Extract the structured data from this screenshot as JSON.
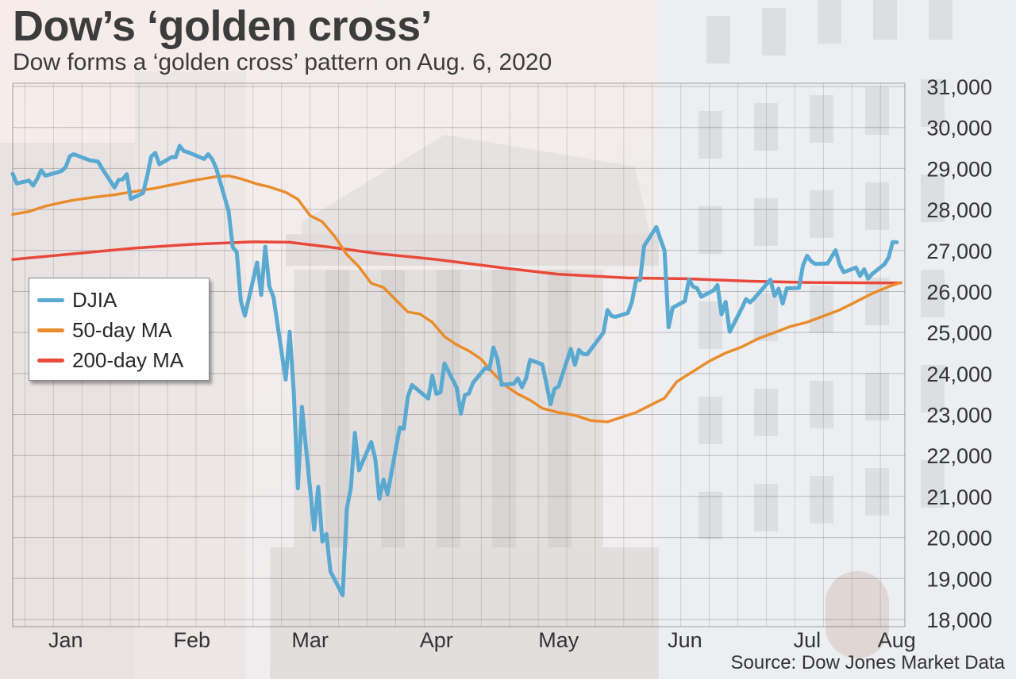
{
  "title": "Dow’s ‘golden cross’",
  "subtitle": "Dow forms a ‘golden cross’ pattern on Aug. 6, 2020",
  "source": "Source: Dow Jones Market Data",
  "colors": {
    "djia": "#5aa9d0",
    "ma50": "#e98d2c",
    "ma200": "#e8493a"
  },
  "chart_data": {
    "type": "line",
    "title": "Dow’s ‘golden cross’",
    "subtitle": "Dow forms a ‘golden cross’ pattern on Aug. 6, 2020",
    "x_tick_labels": [
      "Jan",
      "Feb",
      "Mar",
      "Apr",
      "May",
      "Jun",
      "Jul",
      "Aug"
    ],
    "x_tick_dates": [
      "2020-01-15",
      "2020-02-15",
      "2020-03-15",
      "2020-04-15",
      "2020-05-15",
      "2020-06-15",
      "2020-07-15",
      "2020-08-06"
    ],
    "xlim": [
      "2020-01-02",
      "2020-08-08"
    ],
    "y_ticks": [
      18000,
      19000,
      20000,
      21000,
      22000,
      23000,
      24000,
      25000,
      26000,
      27000,
      28000,
      29000,
      30000,
      31000
    ],
    "y_tick_labels": [
      "18,000",
      "19,000",
      "20,000",
      "21,000",
      "22,000",
      "23,000",
      "24,000",
      "25,000",
      "26,000",
      "27,000",
      "28,000",
      "29,000",
      "30,000",
      "31,000"
    ],
    "ylim": [
      18000,
      31200
    ],
    "grid": true,
    "legend_position": "left",
    "series": [
      {
        "name": "DJIA",
        "points": [
          [
            "2020-01-02",
            28868
          ],
          [
            "2020-01-03",
            28635
          ],
          [
            "2020-01-06",
            28703
          ],
          [
            "2020-01-07",
            28583
          ],
          [
            "2020-01-08",
            28745
          ],
          [
            "2020-01-09",
            28957
          ],
          [
            "2020-01-10",
            28824
          ],
          [
            "2020-01-13",
            28907
          ],
          [
            "2020-01-14",
            28940
          ],
          [
            "2020-01-15",
            29030
          ],
          [
            "2020-01-16",
            29298
          ],
          [
            "2020-01-17",
            29348
          ],
          [
            "2020-01-21",
            29197
          ],
          [
            "2020-01-22",
            29187
          ],
          [
            "2020-01-23",
            29161
          ],
          [
            "2020-01-24",
            28990
          ],
          [
            "2020-01-27",
            28536
          ],
          [
            "2020-01-28",
            28723
          ],
          [
            "2020-01-29",
            28735
          ],
          [
            "2020-01-30",
            28860
          ],
          [
            "2020-01-31",
            28256
          ],
          [
            "2020-02-03",
            28400
          ],
          [
            "2020-02-04",
            28808
          ],
          [
            "2020-02-05",
            29291
          ],
          [
            "2020-02-06",
            29380
          ],
          [
            "2020-02-07",
            29103
          ],
          [
            "2020-02-10",
            29276
          ],
          [
            "2020-02-11",
            29277
          ],
          [
            "2020-02-12",
            29551
          ],
          [
            "2020-02-13",
            29424
          ],
          [
            "2020-02-14",
            29398
          ],
          [
            "2020-02-18",
            29232
          ],
          [
            "2020-02-19",
            29348
          ],
          [
            "2020-02-20",
            29219
          ],
          [
            "2020-02-21",
            28992
          ],
          [
            "2020-02-24",
            27961
          ],
          [
            "2020-02-25",
            27081
          ],
          [
            "2020-02-26",
            26957
          ],
          [
            "2020-02-27",
            25767
          ],
          [
            "2020-02-28",
            25409
          ],
          [
            "2020-03-02",
            26703
          ],
          [
            "2020-03-03",
            25917
          ],
          [
            "2020-03-04",
            27091
          ],
          [
            "2020-03-05",
            26121
          ],
          [
            "2020-03-06",
            25865
          ],
          [
            "2020-03-09",
            23851
          ],
          [
            "2020-03-10",
            25018
          ],
          [
            "2020-03-11",
            23553
          ],
          [
            "2020-03-12",
            21200
          ],
          [
            "2020-03-13",
            23186
          ],
          [
            "2020-03-16",
            20189
          ],
          [
            "2020-03-17",
            21237
          ],
          [
            "2020-03-18",
            19899
          ],
          [
            "2020-03-19",
            20087
          ],
          [
            "2020-03-20",
            19174
          ],
          [
            "2020-03-23",
            18592
          ],
          [
            "2020-03-24",
            20704
          ],
          [
            "2020-03-25",
            21200
          ],
          [
            "2020-03-26",
            22552
          ],
          [
            "2020-03-27",
            21637
          ],
          [
            "2020-03-30",
            22327
          ],
          [
            "2020-03-31",
            21917
          ],
          [
            "2020-04-01",
            20943
          ],
          [
            "2020-04-02",
            21413
          ],
          [
            "2020-04-03",
            21053
          ],
          [
            "2020-04-06",
            22680
          ],
          [
            "2020-04-07",
            22654
          ],
          [
            "2020-04-08",
            23434
          ],
          [
            "2020-04-09",
            23719
          ],
          [
            "2020-04-13",
            23390
          ],
          [
            "2020-04-14",
            23949
          ],
          [
            "2020-04-15",
            23504
          ],
          [
            "2020-04-16",
            23538
          ],
          [
            "2020-04-17",
            24242
          ],
          [
            "2020-04-20",
            23650
          ],
          [
            "2020-04-21",
            23019
          ],
          [
            "2020-04-22",
            23475
          ],
          [
            "2020-04-23",
            23515
          ],
          [
            "2020-04-24",
            23775
          ],
          [
            "2020-04-27",
            24134
          ],
          [
            "2020-04-28",
            24101
          ],
          [
            "2020-04-29",
            24634
          ],
          [
            "2020-04-30",
            24346
          ],
          [
            "2020-05-01",
            23724
          ],
          [
            "2020-05-04",
            23750
          ],
          [
            "2020-05-05",
            23883
          ],
          [
            "2020-05-06",
            23664
          ],
          [
            "2020-05-07",
            23876
          ],
          [
            "2020-05-08",
            24331
          ],
          [
            "2020-05-11",
            24222
          ],
          [
            "2020-05-12",
            23765
          ],
          [
            "2020-05-13",
            23248
          ],
          [
            "2020-05-14",
            23626
          ],
          [
            "2020-05-15",
            23686
          ],
          [
            "2020-05-18",
            24598
          ],
          [
            "2020-05-19",
            24207
          ],
          [
            "2020-05-20",
            24576
          ],
          [
            "2020-05-21",
            24475
          ],
          [
            "2020-05-22",
            24465
          ],
          [
            "2020-05-26",
            24995
          ],
          [
            "2020-05-27",
            25548
          ],
          [
            "2020-05-28",
            25401
          ],
          [
            "2020-05-29",
            25383
          ],
          [
            "2020-06-01",
            25475
          ],
          [
            "2020-06-02",
            25742
          ],
          [
            "2020-06-03",
            26270
          ],
          [
            "2020-06-04",
            26282
          ],
          [
            "2020-06-05",
            27111
          ],
          [
            "2020-06-08",
            27572
          ],
          [
            "2020-06-09",
            27272
          ],
          [
            "2020-06-10",
            27000
          ],
          [
            "2020-06-11",
            25128
          ],
          [
            "2020-06-12",
            25606
          ],
          [
            "2020-06-15",
            25763
          ],
          [
            "2020-06-16",
            26290
          ],
          [
            "2020-06-17",
            26120
          ],
          [
            "2020-06-18",
            26080
          ],
          [
            "2020-06-19",
            25871
          ],
          [
            "2020-06-22",
            26025
          ],
          [
            "2020-06-23",
            26156
          ],
          [
            "2020-06-24",
            25445
          ],
          [
            "2020-06-25",
            25746
          ],
          [
            "2020-06-26",
            25016
          ],
          [
            "2020-06-29",
            25596
          ],
          [
            "2020-06-30",
            25813
          ],
          [
            "2020-07-01",
            25735
          ],
          [
            "2020-07-02",
            25827
          ],
          [
            "2020-07-06",
            26287
          ],
          [
            "2020-07-07",
            25890
          ],
          [
            "2020-07-08",
            26067
          ],
          [
            "2020-07-09",
            25706
          ],
          [
            "2020-07-10",
            26075
          ],
          [
            "2020-07-13",
            26086
          ],
          [
            "2020-07-14",
            26643
          ],
          [
            "2020-07-15",
            26870
          ],
          [
            "2020-07-16",
            26735
          ],
          [
            "2020-07-17",
            26672
          ],
          [
            "2020-07-20",
            26680
          ],
          [
            "2020-07-21",
            26840
          ],
          [
            "2020-07-22",
            27005
          ],
          [
            "2020-07-23",
            26652
          ],
          [
            "2020-07-24",
            26470
          ],
          [
            "2020-07-27",
            26584
          ],
          [
            "2020-07-28",
            26379
          ],
          [
            "2020-07-29",
            26540
          ],
          [
            "2020-07-30",
            26314
          ],
          [
            "2020-07-31",
            26428
          ],
          [
            "2020-08-03",
            26665
          ],
          [
            "2020-08-04",
            26828
          ],
          [
            "2020-08-05",
            27202
          ],
          [
            "2020-08-06",
            27201
          ]
        ]
      },
      {
        "name": "50-day MA",
        "points": [
          [
            "2020-01-02",
            27880
          ],
          [
            "2020-01-06",
            27950
          ],
          [
            "2020-01-10",
            28080
          ],
          [
            "2020-01-14",
            28170
          ],
          [
            "2020-01-17",
            28230
          ],
          [
            "2020-01-22",
            28300
          ],
          [
            "2020-01-27",
            28360
          ],
          [
            "2020-02-01",
            28440
          ],
          [
            "2020-02-06",
            28520
          ],
          [
            "2020-02-11",
            28620
          ],
          [
            "2020-02-16",
            28720
          ],
          [
            "2020-02-21",
            28800
          ],
          [
            "2020-02-24",
            28820
          ],
          [
            "2020-02-27",
            28750
          ],
          [
            "2020-03-02",
            28620
          ],
          [
            "2020-03-05",
            28550
          ],
          [
            "2020-03-09",
            28420
          ],
          [
            "2020-03-12",
            28250
          ],
          [
            "2020-03-15",
            27850
          ],
          [
            "2020-03-18",
            27700
          ],
          [
            "2020-03-21",
            27350
          ],
          [
            "2020-03-24",
            26900
          ],
          [
            "2020-03-27",
            26600
          ],
          [
            "2020-03-30",
            26200
          ],
          [
            "2020-04-02",
            26100
          ],
          [
            "2020-04-05",
            25800
          ],
          [
            "2020-04-08",
            25500
          ],
          [
            "2020-04-11",
            25450
          ],
          [
            "2020-04-14",
            25250
          ],
          [
            "2020-04-17",
            24900
          ],
          [
            "2020-04-20",
            24700
          ],
          [
            "2020-04-23",
            24550
          ],
          [
            "2020-04-26",
            24350
          ],
          [
            "2020-04-29",
            24000
          ],
          [
            "2020-05-02",
            23700
          ],
          [
            "2020-05-05",
            23500
          ],
          [
            "2020-05-08",
            23350
          ],
          [
            "2020-05-11",
            23150
          ],
          [
            "2020-05-15",
            23050
          ],
          [
            "2020-05-19",
            22980
          ],
          [
            "2020-05-23",
            22850
          ],
          [
            "2020-05-27",
            22820
          ],
          [
            "2020-05-31",
            22950
          ],
          [
            "2020-06-03",
            23050
          ],
          [
            "2020-06-07",
            23250
          ],
          [
            "2020-06-10",
            23400
          ],
          [
            "2020-06-13",
            23800
          ],
          [
            "2020-06-17",
            24050
          ],
          [
            "2020-06-21",
            24300
          ],
          [
            "2020-06-25",
            24500
          ],
          [
            "2020-06-29",
            24650
          ],
          [
            "2020-07-03",
            24850
          ],
          [
            "2020-07-07",
            25000
          ],
          [
            "2020-07-11",
            25150
          ],
          [
            "2020-07-15",
            25250
          ],
          [
            "2020-07-19",
            25400
          ],
          [
            "2020-07-23",
            25550
          ],
          [
            "2020-07-27",
            25750
          ],
          [
            "2020-07-31",
            25950
          ],
          [
            "2020-08-04",
            26120
          ],
          [
            "2020-08-07",
            26220
          ]
        ]
      },
      {
        "name": "200-day MA",
        "points": [
          [
            "2020-01-02",
            26780
          ],
          [
            "2020-01-15",
            26900
          ],
          [
            "2020-02-01",
            27060
          ],
          [
            "2020-02-15",
            27150
          ],
          [
            "2020-03-01",
            27210
          ],
          [
            "2020-03-10",
            27200
          ],
          [
            "2020-03-20",
            27080
          ],
          [
            "2020-04-01",
            26920
          ],
          [
            "2020-04-15",
            26780
          ],
          [
            "2020-05-01",
            26580
          ],
          [
            "2020-05-15",
            26420
          ],
          [
            "2020-06-01",
            26330
          ],
          [
            "2020-06-15",
            26310
          ],
          [
            "2020-07-01",
            26250
          ],
          [
            "2020-07-15",
            26220
          ],
          [
            "2020-08-01",
            26210
          ],
          [
            "2020-08-07",
            26210
          ]
        ]
      }
    ]
  }
}
